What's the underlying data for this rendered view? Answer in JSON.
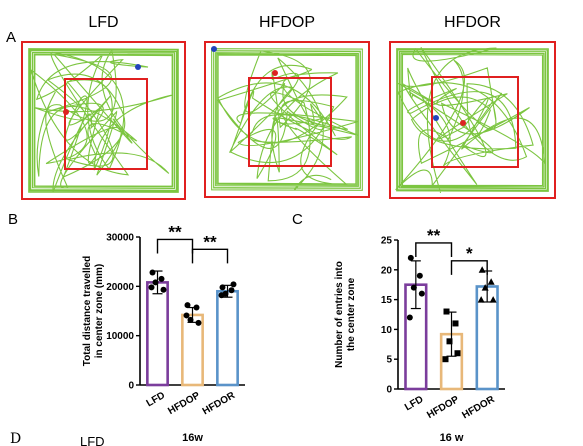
{
  "panel_labels": {
    "A": "A",
    "B": "B",
    "C": "C",
    "D": "D"
  },
  "panel_a": {
    "groups": [
      "LFD",
      "HFDOP",
      "HFDOR"
    ],
    "colors": {
      "track": "#7cc540",
      "zone": "#e02020",
      "start": "#2244bb",
      "end": "#dd2222"
    }
  },
  "panel_d": {
    "partial_label": "LFD"
  },
  "chart_data": [
    {
      "type": "bar",
      "panel": "B",
      "ylabel_lines": [
        "Total distance travelled",
        "in center zone (mm)"
      ],
      "ylim": [
        0,
        30000
      ],
      "yticks": [
        0,
        10000,
        20000,
        30000
      ],
      "ytick_labels": [
        "0",
        "10000",
        "20000",
        "30000"
      ],
      "categories": [
        "LFD",
        "HFDOP",
        "HFDOR"
      ],
      "values": [
        20800,
        14200,
        19000
      ],
      "errors": [
        2300,
        1500,
        1200
      ],
      "colors": [
        "#7b3d9c",
        "#e8b879",
        "#5a93c9"
      ],
      "marker": "circle",
      "points": [
        [
          22800,
          21500,
          20800,
          19300,
          19800
        ],
        [
          16200,
          15700,
          13200,
          12600,
          14100
        ],
        [
          19800,
          19200,
          18500,
          20400,
          18200
        ]
      ],
      "xtitle": "16w",
      "significance": [
        {
          "from": 0,
          "to": 1,
          "label": "**",
          "y": 29500
        },
        {
          "from": 1,
          "to": 2,
          "label": "**",
          "y": 27500
        }
      ]
    },
    {
      "type": "bar",
      "panel": "C",
      "ylabel_lines": [
        "Number of entries into",
        "the center zone"
      ],
      "ylim": [
        0,
        25
      ],
      "yticks": [
        0,
        5,
        10,
        15,
        20,
        25
      ],
      "ytick_labels": [
        "0",
        "5",
        "10",
        "15",
        "20",
        "25"
      ],
      "categories": [
        "LFD",
        "HFDOP",
        "HFDOR"
      ],
      "values": [
        17.5,
        9.2,
        17.2
      ],
      "errors": [
        4.0,
        3.7,
        2.6
      ],
      "colors": [
        "#7b3d9c",
        "#e8b879",
        "#5a93c9"
      ],
      "marker": [
        "circle",
        "square",
        "triangle"
      ],
      "points": [
        [
          22,
          19,
          17,
          16,
          12
        ],
        [
          13,
          11,
          8,
          6,
          5
        ],
        [
          20,
          18,
          17,
          15,
          15
        ]
      ],
      "xtitle": "16 w",
      "significance": [
        {
          "from": 0,
          "to": 1,
          "label": "**",
          "y": 24.5
        },
        {
          "from": 1,
          "to": 2,
          "label": "*",
          "y": 21.5
        }
      ]
    }
  ]
}
